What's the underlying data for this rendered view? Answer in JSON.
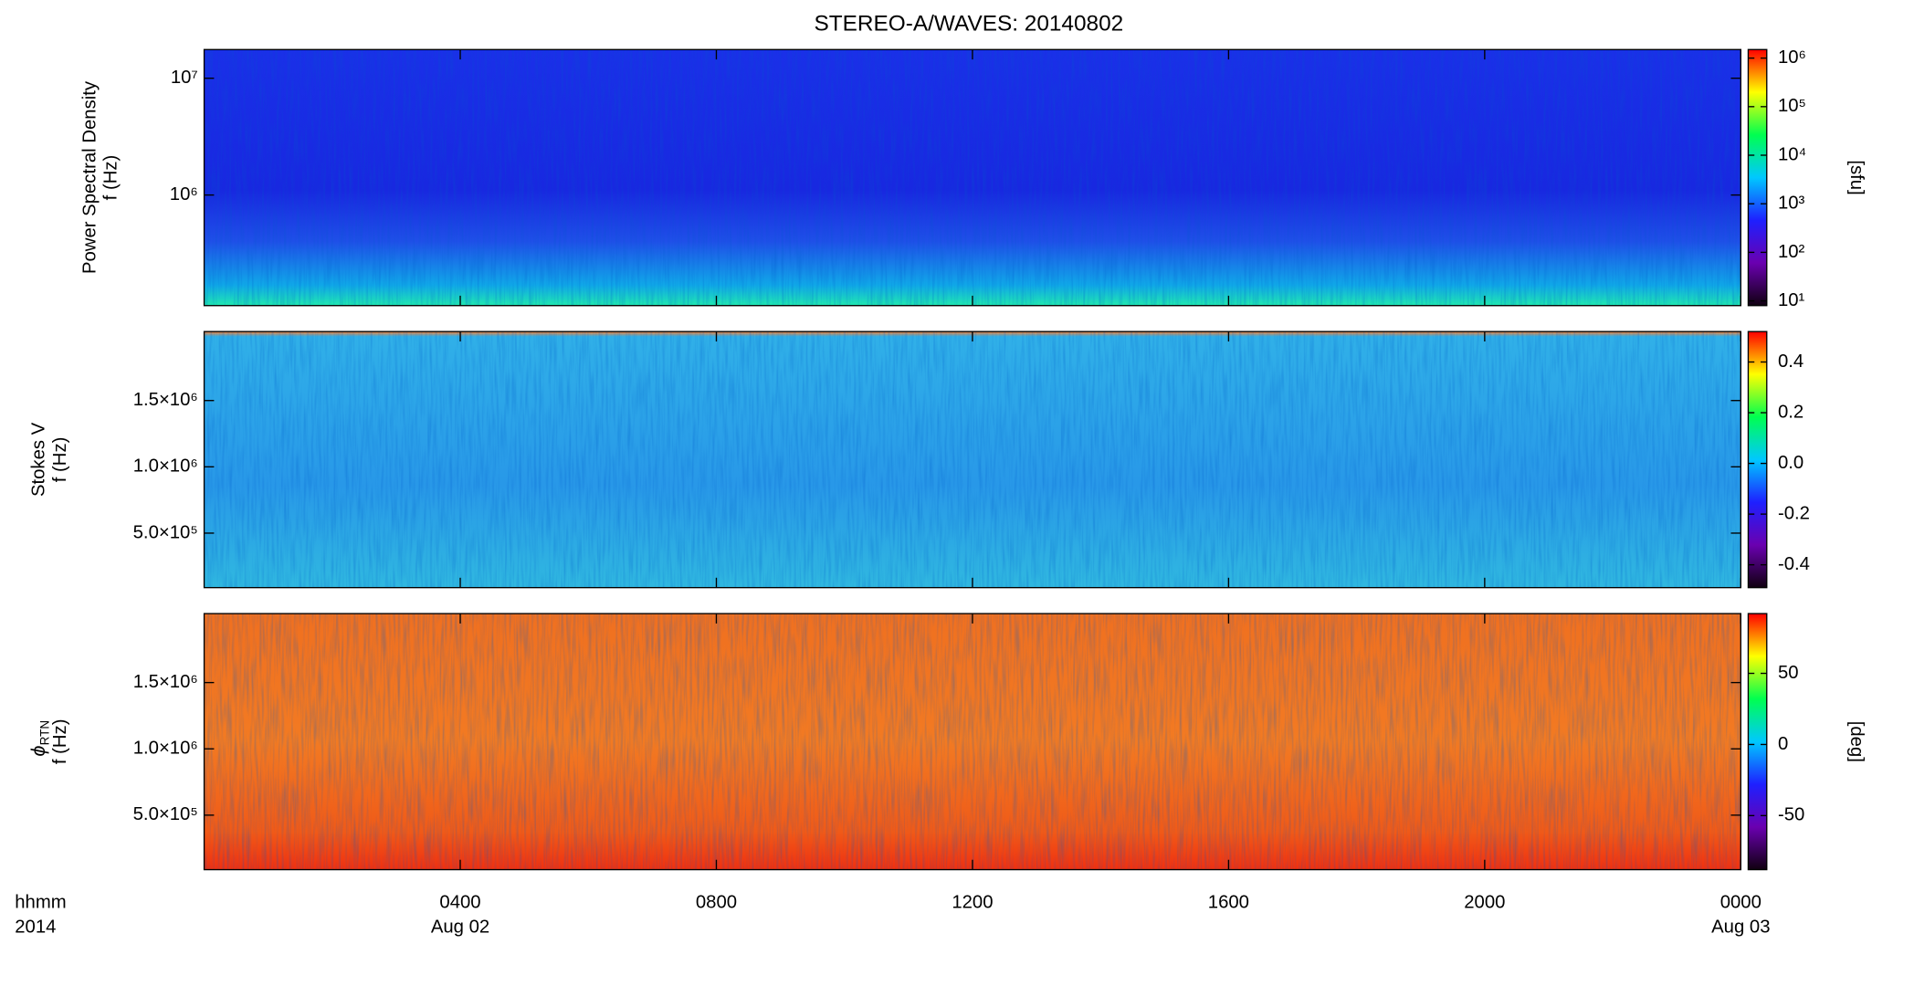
{
  "chart_data": [
    {
      "type": "heatmap",
      "title": "STEREO-A/WAVES: 20140802",
      "ylabel": "Power Spectral Density",
      "ylabel2": "f (Hz)",
      "ylog": true,
      "ylim": [
        113000,
        17600000
      ],
      "yticks": [
        {
          "value": 1000000,
          "label": "10⁶"
        },
        {
          "value": 10000000,
          "label": "10⁷"
        }
      ],
      "xlim": [
        0,
        24
      ],
      "clog": true,
      "clim": [
        8,
        1500000
      ],
      "cticks": [
        {
          "value": 10,
          "label": "10¹"
        },
        {
          "value": 100,
          "label": "10²"
        },
        {
          "value": 1000,
          "label": "10³"
        },
        {
          "value": 10000,
          "label": "10⁴"
        },
        {
          "value": 100000,
          "label": "10⁵"
        },
        {
          "value": 1000000,
          "label": "10⁶"
        }
      ],
      "clabel": "[sfu]",
      "colormap": [
        "#100010",
        "#6a00b0",
        "#1e20ff",
        "#00c8ff",
        "#00ff50",
        "#ffff00",
        "#ff0000"
      ]
    },
    {
      "type": "heatmap",
      "ylabel": "Stokes V",
      "ylabel2": "f (Hz)",
      "ylog": false,
      "ylim": [
        89000,
        2020000
      ],
      "yticks": [
        {
          "value": 500000,
          "label": "5.0×10⁵"
        },
        {
          "value": 1000000,
          "label": "1.0×10⁶"
        },
        {
          "value": 1500000,
          "label": "1.5×10⁶"
        }
      ],
      "xlim": [
        0,
        24
      ],
      "clog": false,
      "clim": [
        -0.49,
        0.52
      ],
      "cticks": [
        0.4,
        0.2,
        {
          "value": 0,
          "label": "0.0"
        },
        -0.2,
        -0.4
      ],
      "colormap": [
        "#100010",
        "#6a00b0",
        "#1e20ff",
        "#00c8ff",
        "#00ff50",
        "#ffff00",
        "#ff0000"
      ]
    },
    {
      "type": "heatmap",
      "ylabel": "ϕ",
      "ylabel_sub": "RTN",
      "ylabel2": "f (Hz)",
      "ylog": false,
      "ylim": [
        89000,
        2020000
      ],
      "yticks": [
        {
          "value": 500000,
          "label": "5.0×10⁵"
        },
        {
          "value": 1000000,
          "label": "1.0×10⁶"
        },
        {
          "value": 1500000,
          "label": "1.5×10⁶"
        }
      ],
      "xlim": [
        0,
        24
      ],
      "xticks": [
        {
          "value": 4,
          "label": "0400"
        },
        {
          "value": 8,
          "label": "0800"
        },
        {
          "value": 12,
          "label": "1200"
        },
        {
          "value": 16,
          "label": "1600"
        },
        {
          "value": 20,
          "label": "2000"
        },
        {
          "value": 24,
          "label": "0000"
        }
      ],
      "xdates": [
        {
          "value": 4,
          "label": "Aug 02"
        },
        {
          "value": 24,
          "label": "Aug 03"
        }
      ],
      "xunit": "hhmm",
      "xyear": "2014",
      "clog": false,
      "clim": [
        -88,
        92
      ],
      "cticks": [
        50,
        0,
        -50
      ],
      "clabel": "[deg]",
      "colormap": [
        "#100010",
        "#6a00b0",
        "#1e20ff",
        "#00c8ff",
        "#00ff50",
        "#ffff00",
        "#ff0000"
      ]
    }
  ]
}
